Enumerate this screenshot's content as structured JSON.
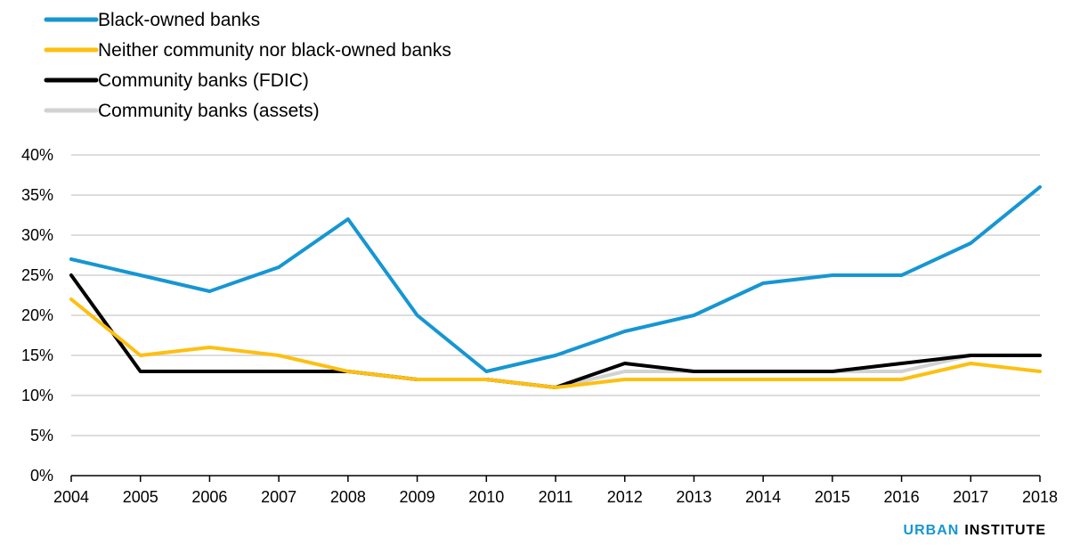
{
  "chart_data": {
    "type": "line",
    "title": "",
    "xlabel": "",
    "ylabel": "",
    "x": [
      "2004",
      "2005",
      "2006",
      "2007",
      "2008",
      "2009",
      "2010",
      "2011",
      "2012",
      "2013",
      "2014",
      "2015",
      "2016",
      "2017",
      "2018"
    ],
    "ylim": [
      0,
      40
    ],
    "y_ticks": [
      "0%",
      "5%",
      "10%",
      "15%",
      "20%",
      "25%",
      "30%",
      "35%",
      "40%"
    ],
    "y_tick_values": [
      0,
      5,
      10,
      15,
      20,
      25,
      30,
      35,
      40
    ],
    "grid": true,
    "legend_position": "top-left",
    "series": [
      {
        "name": "Black-owned banks",
        "color": "#1696d2",
        "values": [
          27,
          25,
          23,
          26,
          32,
          20,
          13,
          15,
          18,
          20,
          24,
          25,
          25,
          29,
          36
        ]
      },
      {
        "name": "Neither community nor black-owned banks",
        "color": "#fdbf11",
        "values": [
          22,
          15,
          16,
          15,
          13,
          12,
          12,
          11,
          12,
          12,
          12,
          12,
          12,
          14,
          13
        ]
      },
      {
        "name": "Community banks (FDIC)",
        "color": "#000000",
        "values": [
          25,
          13,
          13,
          13,
          13,
          12,
          12,
          11,
          14,
          13,
          13,
          13,
          14,
          15,
          15
        ]
      },
      {
        "name": "Community banks (assets)",
        "color": "#d2d2d2",
        "values": [
          25,
          13,
          13,
          13,
          13,
          12,
          12,
          11,
          13,
          13,
          13,
          13,
          13,
          15,
          15
        ]
      }
    ]
  },
  "branding": {
    "word1": "URBAN",
    "word2": "INSTITUTE",
    "word1_color": "#1696d2",
    "word2_color": "#000000"
  }
}
